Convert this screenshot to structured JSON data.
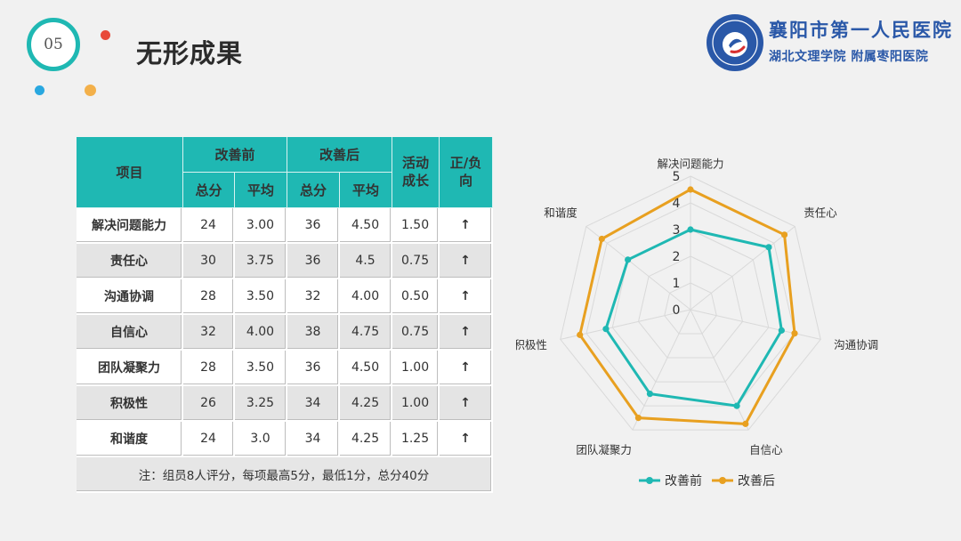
{
  "header": {
    "section_number": "05",
    "title": "无形成果"
  },
  "logo": {
    "line1": "襄阳市第一人民医院",
    "line2": "湖北文理学院 附属枣阳医院"
  },
  "table": {
    "header": {
      "item": "项目",
      "before": "改善前",
      "after": "改善后",
      "growth": "活动成长",
      "direction": "正/负向",
      "total": "总分",
      "avg": "平均"
    },
    "rows": [
      {
        "name": "解决问题能力",
        "before_total": "24",
        "before_avg": "3.00",
        "after_total": "36",
        "after_avg": "4.50",
        "growth": "1.50",
        "dir": "↑"
      },
      {
        "name": "责任心",
        "before_total": "30",
        "before_avg": "3.75",
        "after_total": "36",
        "after_avg": "4.5",
        "growth": "0.75",
        "dir": "↑"
      },
      {
        "name": "沟通协调",
        "before_total": "28",
        "before_avg": "3.50",
        "after_total": "32",
        "after_avg": "4.00",
        "growth": "0.50",
        "dir": "↑"
      },
      {
        "name": "自信心",
        "before_total": "32",
        "before_avg": "4.00",
        "after_total": "38",
        "after_avg": "4.75",
        "growth": "0.75",
        "dir": "↑"
      },
      {
        "name": "团队凝聚力",
        "before_total": "28",
        "before_avg": "3.50",
        "after_total": "36",
        "after_avg": "4.50",
        "growth": "1.00",
        "dir": "↑"
      },
      {
        "name": "积极性",
        "before_total": "26",
        "before_avg": "3.25",
        "after_total": "34",
        "after_avg": "4.25",
        "growth": "1.00",
        "dir": "↑"
      },
      {
        "name": "和谐度",
        "before_total": "24",
        "before_avg": "3.0",
        "after_total": "34",
        "after_avg": "4.25",
        "growth": "1.25",
        "dir": "↑"
      }
    ],
    "note": "注：组员8人评分，每项最高5分，最低1分，总分40分"
  },
  "chart_data": {
    "type": "radar",
    "categories": [
      "解决问题能力",
      "责任心",
      "沟通协调",
      "自信心",
      "团队凝聚力",
      "积极性",
      "和谐度"
    ],
    "series": [
      {
        "name": "改善前",
        "values": [
          3.0,
          3.75,
          3.5,
          4.0,
          3.5,
          3.25,
          3.0
        ],
        "color": "#1fb8b3"
      },
      {
        "name": "改善后",
        "values": [
          4.5,
          4.5,
          4.0,
          4.75,
          4.5,
          4.25,
          4.25
        ],
        "color": "#e8a020"
      }
    ],
    "rlim": [
      0,
      5
    ],
    "ticks": [
      "0",
      "1",
      "2",
      "3",
      "4",
      "5"
    ],
    "legend": "bottom",
    "grid": true,
    "grid_color": "#d9d9d9"
  }
}
